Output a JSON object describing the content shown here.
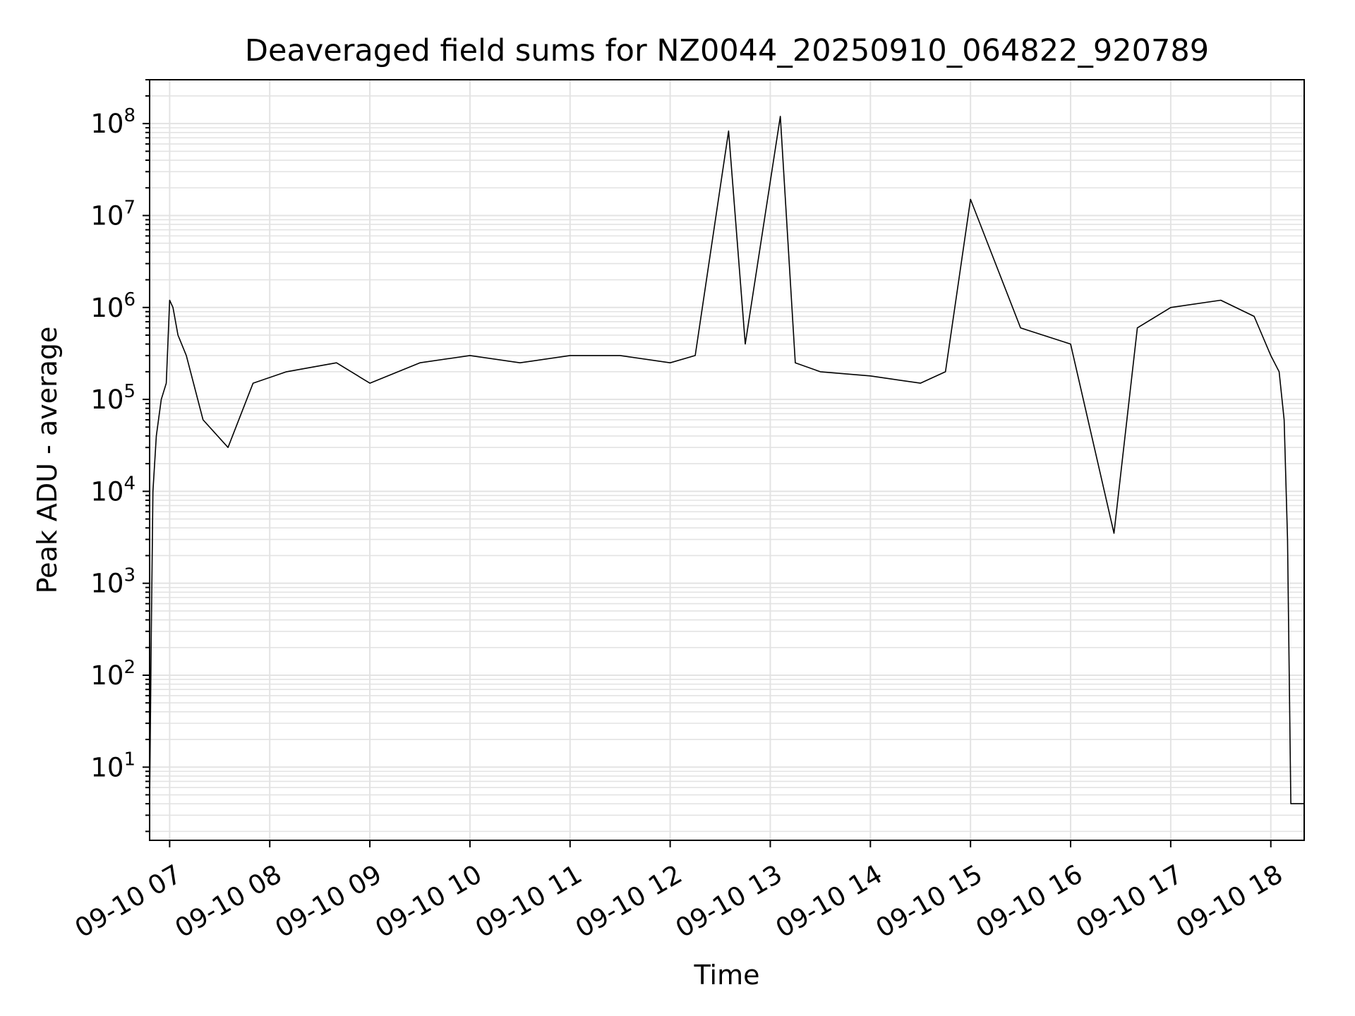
{
  "chart_data": {
    "type": "line",
    "title": "Deaveraged field sums for NZ0044_20250910_064822_920789",
    "xlabel": "Time",
    "ylabel": "Peak ADU - average",
    "yscale": "log",
    "ylim": [
      1.6,
      300000000.0
    ],
    "xlim": [
      "2025-09-10 06:48",
      "2025-09-10 18:20"
    ],
    "grid": true,
    "grid_minor": true,
    "line_color": "#000000",
    "x_ticks": [
      "09-10 07",
      "09-10 08",
      "09-10 09",
      "09-10 10",
      "09-10 11",
      "09-10 12",
      "09-10 13",
      "09-10 14",
      "09-10 15",
      "09-10 16",
      "09-10 17",
      "09-10 18"
    ],
    "y_ticks": [
      {
        "base": "10",
        "exp": "1"
      },
      {
        "base": "10",
        "exp": "2"
      },
      {
        "base": "10",
        "exp": "3"
      },
      {
        "base": "10",
        "exp": "4"
      },
      {
        "base": "10",
        "exp": "5"
      },
      {
        "base": "10",
        "exp": "6"
      },
      {
        "base": "10",
        "exp": "7"
      },
      {
        "base": "10",
        "exp": "8"
      }
    ],
    "series": [
      {
        "x": [
          "2025-09-10 06:48",
          "2025-09-10 06:49",
          "2025-09-10 06:50",
          "2025-09-10 06:52",
          "2025-09-10 06:55",
          "2025-09-10 06:58",
          "2025-09-10 07:00",
          "2025-09-10 07:02",
          "2025-09-10 07:05",
          "2025-09-10 07:10",
          "2025-09-10 07:20",
          "2025-09-10 07:35",
          "2025-09-10 07:50",
          "2025-09-10 08:10",
          "2025-09-10 08:40",
          "2025-09-10 09:00",
          "2025-09-10 09:30",
          "2025-09-10 10:00",
          "2025-09-10 10:30",
          "2025-09-10 11:00",
          "2025-09-10 11:30",
          "2025-09-10 12:00",
          "2025-09-10 12:15",
          "2025-09-10 12:35",
          "2025-09-10 12:45",
          "2025-09-10 13:06",
          "2025-09-10 13:15",
          "2025-09-10 13:30",
          "2025-09-10 14:00",
          "2025-09-10 14:30",
          "2025-09-10 14:45",
          "2025-09-10 15:00",
          "2025-09-10 15:30",
          "2025-09-10 16:00",
          "2025-09-10 16:26",
          "2025-09-10 16:40",
          "2025-09-10 17:00",
          "2025-09-10 17:30",
          "2025-09-10 17:50",
          "2025-09-10 18:00",
          "2025-09-10 18:05",
          "2025-09-10 18:08",
          "2025-09-10 18:10",
          "2025-09-10 18:12",
          "2025-09-10 18:20"
        ],
        "y": [
          4,
          300,
          10000,
          40000,
          100000,
          150000,
          1200000,
          1000000,
          500000,
          300000,
          60000,
          30000,
          150000,
          200000,
          250000,
          150000,
          250000,
          300000,
          250000,
          300000,
          300000,
          250000,
          300000,
          83000000,
          400000,
          120000000,
          250000,
          200000,
          180000,
          150000,
          200000,
          15000000,
          600000,
          400000,
          3500,
          600000,
          1000000,
          1200000,
          800000,
          300000,
          200000,
          60000,
          3000,
          4,
          4
        ]
      }
    ]
  }
}
